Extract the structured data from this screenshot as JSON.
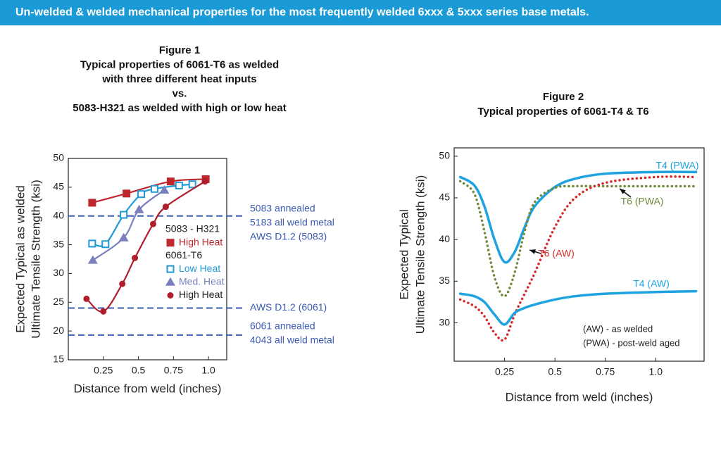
{
  "header": {
    "title": "Un-welded & welded mechanical properties for the most frequently welded 6xxx & 5xxx series base metals."
  },
  "chart_data": [
    {
      "type": "line",
      "title": [
        "Figure 1",
        "Typical properties of 6061-T6 as welded",
        "with three different heat inputs",
        "vs.",
        "5083-H321 as welded with high or low heat"
      ],
      "xlabel": "Distance from weld (inches)",
      "ylabel": [
        "Expected Typical as welded",
        "Ultimate Tensile Strength (ksi)"
      ],
      "xlim": [
        0,
        1.13
      ],
      "ylim": [
        15,
        50
      ],
      "xticks": [
        0.25,
        0.5,
        0.75,
        {
          "value": 1,
          "label": "1.0"
        }
      ],
      "yticks": [
        15,
        20,
        25,
        30,
        35,
        40,
        45,
        50
      ],
      "series": [
        {
          "name": "High Heat",
          "group": "5083 - H321",
          "color": "#c0272d",
          "marker": "filled-square",
          "x": [
            0.17,
            0.415,
            0.73,
            0.98
          ],
          "values": [
            42.3,
            43.9,
            46.0,
            46.4
          ]
        },
        {
          "name": "Low Heat",
          "group": "6061-T6",
          "color": "#1e9ad6",
          "marker": "open-square",
          "x": [
            0.17,
            0.265,
            0.395,
            0.52,
            0.615,
            0.79,
            0.885
          ],
          "values": [
            35.2,
            35.1,
            40.2,
            43.8,
            44.7,
            45.3,
            45.5
          ]
        },
        {
          "name": "Med. Heat",
          "group": "6061-T6",
          "color": "#7a7fc0",
          "marker": "triangle",
          "x": [
            0.175,
            0.395,
            0.505,
            0.685
          ],
          "values": [
            32.3,
            36.2,
            41.1,
            44.5
          ]
        },
        {
          "name": "High Heat",
          "group": "6061-T6",
          "color": "#b01e2b",
          "marker": "circle",
          "x": [
            0.13,
            0.25,
            0.385,
            0.475,
            0.605,
            0.695,
            0.975
          ],
          "values": [
            25.6,
            23.4,
            28.2,
            32.7,
            38.6,
            41.6,
            46.0
          ]
        }
      ],
      "reference_lines": [
        {
          "value": 40,
          "labels": [
            "5083 annealed",
            "5183 all weld metal",
            "AWS D1.2 (5083)"
          ]
        },
        {
          "value": 24,
          "labels": [
            "AWS D1.2 (6061)"
          ]
        },
        {
          "value": 19.3,
          "labels": [
            "6061 annealed",
            "4043 all weld metal"
          ]
        }
      ]
    },
    {
      "type": "line",
      "title": [
        "Figure 2",
        "Typical properties of 6061-T4 & T6"
      ],
      "xlabel": "Distance from weld (inches)",
      "ylabel": [
        "Expected Typical",
        "Ultimate Tensile Strength (ksi)"
      ],
      "xlim": [
        0,
        1.24
      ],
      "ylim": [
        25.4,
        51
      ],
      "xticks": [
        0.25,
        0.5,
        0.75,
        {
          "value": 1,
          "label": "1.0"
        }
      ],
      "yticks": [
        30,
        35,
        40,
        45,
        50
      ],
      "x": [
        0.03,
        0.1,
        0.15,
        0.2,
        0.25,
        0.3,
        0.35,
        0.4,
        0.5,
        0.6,
        0.75,
        1.0,
        1.2
      ],
      "series": [
        {
          "name": "T4 (PWA)",
          "color": "#1ea2e0",
          "line_style": "solid",
          "values": [
            47.5,
            46.5,
            44,
            40,
            37.3,
            38.5,
            41.5,
            44,
            46.3,
            47.3,
            47.9,
            48.1,
            48.1
          ]
        },
        {
          "name": "T6 (PWA)",
          "color": "#6e8a3a",
          "line_style": "dotted",
          "values": [
            47,
            45.5,
            41,
            35.5,
            33.2,
            36,
            41,
            44.5,
            46.2,
            46.4,
            46.4,
            46.4,
            46.4
          ]
        },
        {
          "name": "T6 (AW)",
          "color": "#d42a2a",
          "line_style": "dotted",
          "values": [
            32.8,
            32,
            30.8,
            28.8,
            28,
            31,
            33.5,
            36,
            41.5,
            45,
            46.8,
            47.5,
            47.5
          ]
        },
        {
          "name": "T4 (AW)",
          "color": "#1ea2e0",
          "line_style": "solid",
          "values": [
            33.5,
            33.2,
            32.5,
            31,
            29.8,
            31.2,
            31.8,
            32.2,
            32.8,
            33.2,
            33.5,
            33.7,
            33.8
          ]
        }
      ],
      "notes": [
        "(AW) - as welded",
        "(PWA) - post-weld aged"
      ]
    }
  ]
}
